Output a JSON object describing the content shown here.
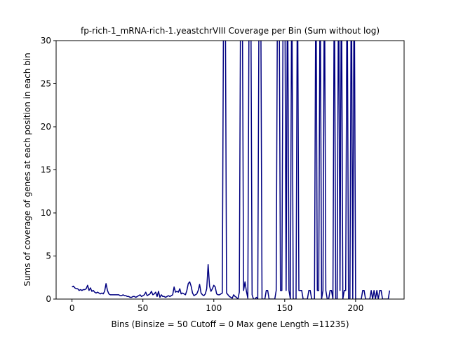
{
  "chart_data": {
    "type": "line",
    "title": "fp-rich-1_mRNA-rich-1.yeastchrVIII Coverage per Bin (Sum without log)",
    "x_label": "Bins  (Binsize = 50 Cutoff = 0 Max gene Length =11235)",
    "y_label": "Sums of coverage of genes at each position in each bin",
    "x": [
      0,
      1,
      2,
      3,
      4,
      5,
      6,
      7,
      8,
      9,
      10,
      11,
      12,
      13,
      14,
      15,
      16,
      17,
      18,
      19,
      20,
      21,
      22,
      23,
      24,
      25,
      26,
      27,
      28,
      29,
      30,
      31,
      32,
      33,
      34,
      35,
      36,
      37,
      38,
      39,
      40,
      41,
      42,
      43,
      44,
      45,
      46,
      47,
      48,
      49,
      50,
      51,
      52,
      53,
      54,
      55,
      56,
      57,
      58,
      59,
      60,
      61,
      62,
      63,
      64,
      65,
      66,
      67,
      68,
      69,
      70,
      71,
      72,
      73,
      74,
      75,
      76,
      77,
      78,
      79,
      80,
      81,
      82,
      83,
      84,
      85,
      86,
      87,
      88,
      89,
      90,
      91,
      92,
      93,
      94,
      95,
      96,
      97,
      98,
      99,
      100,
      101,
      102,
      103,
      104,
      105,
      106,
      107,
      108,
      109,
      110,
      111,
      112,
      113,
      114,
      115,
      116,
      117,
      118,
      119,
      120,
      121,
      122,
      123,
      124,
      125,
      126,
      127,
      128,
      129,
      130,
      131,
      132,
      133,
      134,
      135,
      136,
      137,
      138,
      139,
      140,
      141,
      142,
      143,
      144,
      145,
      146,
      147,
      148,
      149,
      150,
      151,
      152,
      153,
      154,
      155,
      156,
      157,
      158,
      159,
      160,
      161,
      162,
      163,
      164,
      165,
      166,
      167,
      168,
      169,
      170,
      171,
      172,
      173,
      174,
      175,
      176,
      177,
      178,
      179,
      180,
      181,
      182,
      183,
      184,
      185,
      186,
      187,
      188,
      189,
      190,
      191,
      192,
      193,
      194,
      195,
      196,
      197,
      198,
      199,
      200,
      201,
      202,
      203,
      204,
      205,
      206,
      207,
      208,
      209,
      210,
      211,
      212,
      213,
      214,
      215,
      216,
      217,
      218,
      219,
      220,
      221,
      222,
      223,
      224
    ],
    "series": [
      {
        "color": "#000080",
        "values": [
          1.4,
          1.5,
          1.3,
          1.2,
          1.2,
          1.0,
          1.1,
          1.0,
          1.1,
          1.1,
          1.2,
          1.6,
          1.0,
          1.3,
          0.9,
          1.0,
          0.8,
          0.7,
          0.8,
          0.7,
          0.6,
          0.7,
          0.6,
          0.9,
          1.8,
          1.0,
          0.6,
          0.5,
          0.5,
          0.5,
          0.5,
          0.5,
          0.5,
          0.5,
          0.4,
          0.4,
          0.5,
          0.4,
          0.4,
          0.3,
          0.3,
          0.2,
          0.2,
          0.3,
          0.3,
          0.2,
          0.3,
          0.4,
          0.5,
          0.3,
          0.4,
          0.5,
          0.8,
          0.4,
          0.5,
          0.6,
          0.9,
          0.5,
          0.6,
          0.8,
          0.3,
          0.9,
          0.2,
          0.5,
          0.3,
          0.3,
          0.2,
          0.3,
          0.4,
          0.3,
          0.4,
          0.5,
          1.4,
          0.8,
          0.9,
          0.8,
          1.2,
          0.6,
          0.7,
          0.6,
          0.5,
          1.0,
          1.8,
          2.0,
          1.5,
          0.7,
          0.4,
          0.5,
          0.6,
          1.0,
          1.7,
          0.7,
          0.5,
          0.4,
          0.6,
          1.2,
          4.0,
          1.5,
          0.9,
          1.2,
          1.6,
          1.4,
          0.6,
          0.5,
          0.5,
          0.6,
          0.7,
          40,
          40,
          0.7,
          0.5,
          0.3,
          0.2,
          0.1,
          0.5,
          0.3,
          0.2,
          0,
          0.8,
          40,
          40,
          1.0,
          2.0,
          0.9,
          0.1,
          40,
          40,
          0.5,
          0,
          0,
          0.2,
          0,
          40,
          40,
          0,
          0,
          0,
          1,
          1,
          0,
          0,
          0,
          0,
          0,
          1,
          40,
          40,
          1,
          1,
          40,
          40,
          1,
          40,
          1,
          0,
          40,
          0,
          0,
          0,
          40,
          1,
          1,
          1,
          0,
          0,
          0,
          0,
          1,
          1,
          0,
          0,
          0,
          40,
          1,
          1,
          40,
          0,
          1,
          40,
          1,
          0,
          0,
          1,
          1,
          0,
          40,
          0,
          0,
          40,
          1,
          40,
          0,
          1,
          1,
          40,
          0,
          0,
          40,
          0,
          40,
          0,
          0,
          0,
          0,
          0,
          1,
          1,
          0,
          0,
          0,
          0,
          1,
          0,
          1,
          0,
          1,
          0,
          1,
          1,
          0,
          0,
          0,
          0,
          0,
          1
        ]
      }
    ],
    "xlim": [
      -11.2,
      234.2
    ],
    "ylim": [
      0,
      30
    ],
    "xticks": [
      0,
      50,
      100,
      150,
      200
    ],
    "yticks": [
      0,
      5,
      10,
      15,
      20,
      25,
      30
    ]
  }
}
